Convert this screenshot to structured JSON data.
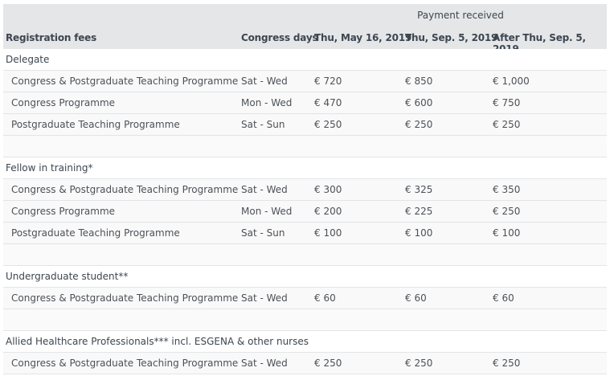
{
  "header": {
    "payment_received": "Payment received",
    "col_fees": "Registration fees",
    "col_days": "Congress days",
    "col_1": "Thu, May 16, 2019",
    "col_2": "Thu, Sep. 5, 2019",
    "col_3": "After Thu, Sep. 5, 2019"
  },
  "groups": [
    {
      "title": "Delegate",
      "rows": [
        {
          "label": "Congress & Postgraduate Teaching Programme",
          "days": "Sat - Wed",
          "p1": "€ 720",
          "p2": "€ 850",
          "p3": "€ 1,000"
        },
        {
          "label": "Congress Programme",
          "days": "Mon - Wed",
          "p1": "€ 470",
          "p2": "€ 600",
          "p3": "€ 750"
        },
        {
          "label": "Postgraduate Teaching Programme",
          "days": "Sat - Sun",
          "p1": "€ 250",
          "p2": "€ 250",
          "p3": "€ 250"
        }
      ]
    },
    {
      "title": "Fellow in training*",
      "rows": [
        {
          "label": "Congress & Postgraduate Teaching Programme",
          "days": "Sat - Wed",
          "p1": "€ 300",
          "p2": "€ 325",
          "p3": "€ 350"
        },
        {
          "label": "Congress Programme",
          "days": "Mon - Wed",
          "p1": "€ 200",
          "p2": "€ 225",
          "p3": "€ 250"
        },
        {
          "label": "Postgraduate Teaching Programme",
          "days": "Sat - Sun",
          "p1": "€ 100",
          "p2": "€ 100",
          "p3": "€ 100"
        }
      ]
    },
    {
      "title": "Undergraduate student**",
      "rows": [
        {
          "label": "Congress & Postgraduate Teaching Programme",
          "days": "Sat - Wed",
          "p1": "€ 60",
          "p2": "€ 60",
          "p3": "€ 60"
        }
      ]
    },
    {
      "title": "Allied Healthcare Professionals*** incl. ESGENA & other nurses",
      "rows": [
        {
          "label": "Congress & Postgraduate Teaching Programme",
          "days": "Sat - Wed",
          "p1": "€ 250",
          "p2": "€ 250",
          "p3": "€ 250"
        }
      ]
    }
  ]
}
